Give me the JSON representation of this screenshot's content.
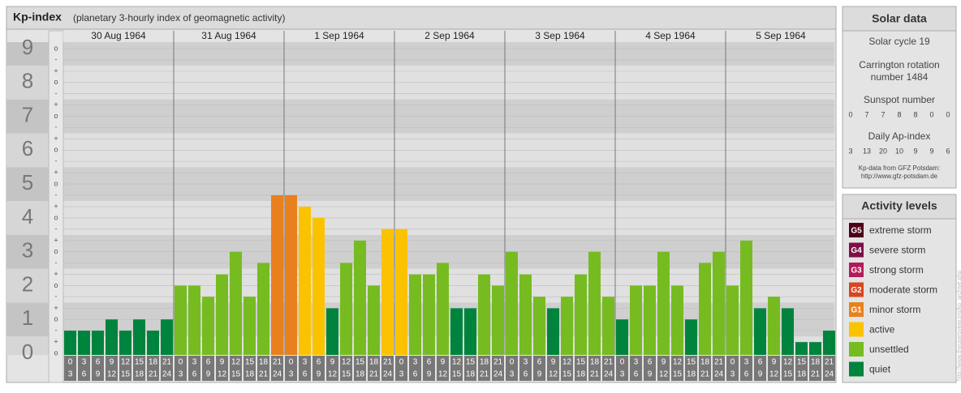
{
  "chart_data": {
    "type": "bar",
    "title": "Kp-index",
    "subtitle": "(planetary 3-hourly index of geomagnetic activity)",
    "ylim": [
      0,
      9
    ],
    "yticks": [
      0,
      1,
      2,
      3,
      4,
      5,
      6,
      7,
      8,
      9
    ],
    "ysubticks": [
      {
        "value": 9,
        "label": "o"
      },
      {
        "value": 8.67,
        "label": "-"
      },
      {
        "value": 8.33,
        "label": "+"
      },
      {
        "value": 8,
        "label": "o"
      },
      {
        "value": 7.67,
        "label": "-"
      },
      {
        "value": 7.33,
        "label": "+"
      },
      {
        "value": 7,
        "label": "o"
      },
      {
        "value": 6.67,
        "label": "-"
      },
      {
        "value": 6.33,
        "label": "+"
      },
      {
        "value": 6,
        "label": "o"
      },
      {
        "value": 5.67,
        "label": "-"
      },
      {
        "value": 5.33,
        "label": "+"
      },
      {
        "value": 5,
        "label": "o"
      },
      {
        "value": 4.67,
        "label": "-"
      },
      {
        "value": 4.33,
        "label": "+"
      },
      {
        "value": 4,
        "label": "o"
      },
      {
        "value": 3.67,
        "label": "-"
      },
      {
        "value": 3.33,
        "label": "+"
      },
      {
        "value": 3,
        "label": "o"
      },
      {
        "value": 2.67,
        "label": "-"
      },
      {
        "value": 2.33,
        "label": "+"
      },
      {
        "value": 2,
        "label": "o"
      },
      {
        "value": 1.67,
        "label": "-"
      },
      {
        "value": 1.33,
        "label": "+"
      },
      {
        "value": 1,
        "label": "o"
      },
      {
        "value": 0.67,
        "label": "-"
      },
      {
        "value": 0.33,
        "label": "+"
      },
      {
        "value": 0,
        "label": "o"
      }
    ],
    "hour_ranges": [
      [
        0,
        3
      ],
      [
        3,
        6
      ],
      [
        6,
        9
      ],
      [
        9,
        12
      ],
      [
        12,
        15
      ],
      [
        15,
        18
      ],
      [
        18,
        21
      ],
      [
        21,
        24
      ]
    ],
    "days": [
      {
        "date": "30 Aug 1964",
        "values": [
          0.67,
          0.67,
          0.67,
          1,
          0.67,
          1,
          0.67,
          1
        ],
        "colors": [
          "#00843d",
          "#00843d",
          "#00843d",
          "#00843d",
          "#00843d",
          "#00843d",
          "#00843d",
          "#00843d"
        ]
      },
      {
        "date": "31 Aug 1964",
        "values": [
          2,
          2,
          1.67,
          2.33,
          3,
          1.67,
          2.67,
          4.67
        ],
        "colors": [
          "#76bc21",
          "#76bc21",
          "#76bc21",
          "#76bc21",
          "#76bc21",
          "#76bc21",
          "#76bc21",
          "#e8801e"
        ]
      },
      {
        "date": "1 Sep 1964",
        "values": [
          4.67,
          4.33,
          4,
          1.33,
          2.67,
          3.33,
          2,
          3.67
        ],
        "colors": [
          "#e8801e",
          "#fbc200",
          "#fbc200",
          "#00843d",
          "#76bc21",
          "#76bc21",
          "#76bc21",
          "#fbc200"
        ]
      },
      {
        "date": "2 Sep 1964",
        "values": [
          3.67,
          2.33,
          2.33,
          2.67,
          1.33,
          1.33,
          2.33,
          2
        ],
        "colors": [
          "#fbc200",
          "#76bc21",
          "#76bc21",
          "#76bc21",
          "#00843d",
          "#00843d",
          "#76bc21",
          "#76bc21"
        ]
      },
      {
        "date": "3 Sep 1964",
        "values": [
          3,
          2.33,
          1.67,
          1.33,
          1.67,
          2.33,
          3,
          1.67
        ],
        "colors": [
          "#76bc21",
          "#76bc21",
          "#76bc21",
          "#00843d",
          "#76bc21",
          "#76bc21",
          "#76bc21",
          "#76bc21"
        ]
      },
      {
        "date": "4 Sep 1964",
        "values": [
          1,
          2,
          2,
          3,
          2,
          1,
          2.67,
          3
        ],
        "colors": [
          "#00843d",
          "#76bc21",
          "#76bc21",
          "#76bc21",
          "#76bc21",
          "#00843d",
          "#76bc21",
          "#76bc21"
        ]
      },
      {
        "date": "5 Sep 1964",
        "values": [
          2,
          3.33,
          1.33,
          1.67,
          1.33,
          0.33,
          0.33,
          0.67
        ],
        "colors": [
          "#76bc21",
          "#76bc21",
          "#00843d",
          "#76bc21",
          "#00843d",
          "#00843d",
          "#00843d",
          "#00843d"
        ]
      }
    ],
    "solar": {
      "title": "Solar data",
      "cycle": "Solar cycle 19",
      "rotation_1": "Carrington rotation",
      "rotation_2": "number 1484",
      "sunspot_title": "Sunspot number",
      "sunspot": [
        0,
        7,
        7,
        8,
        8,
        0,
        0
      ],
      "ap_title": "Daily Ap-index",
      "ap": [
        3,
        13,
        20,
        10,
        9,
        9,
        6
      ],
      "source": "Kp-data from GFZ Potsdam:",
      "url": "http://www.gfz-potsdam.de"
    },
    "legend": {
      "title": "Activity levels",
      "levels": [
        {
          "code": "G5",
          "name": "extreme storm",
          "color": "#4d0019"
        },
        {
          "code": "G4",
          "name": "severe storm",
          "color": "#7d0f46"
        },
        {
          "code": "G3",
          "name": "strong storm",
          "color": "#b4195a"
        },
        {
          "code": "G2",
          "name": "moderate storm",
          "color": "#d7461e"
        },
        {
          "code": "G1",
          "name": "minor storm",
          "color": "#e8801e"
        },
        {
          "name": "active",
          "color": "#fbc200"
        },
        {
          "name": "unsettled",
          "color": "#76bc21"
        },
        {
          "name": "quiet",
          "color": "#00843d"
        }
      ]
    },
    "watermark": "http://www.theusersview.org/kp_archive.php"
  }
}
